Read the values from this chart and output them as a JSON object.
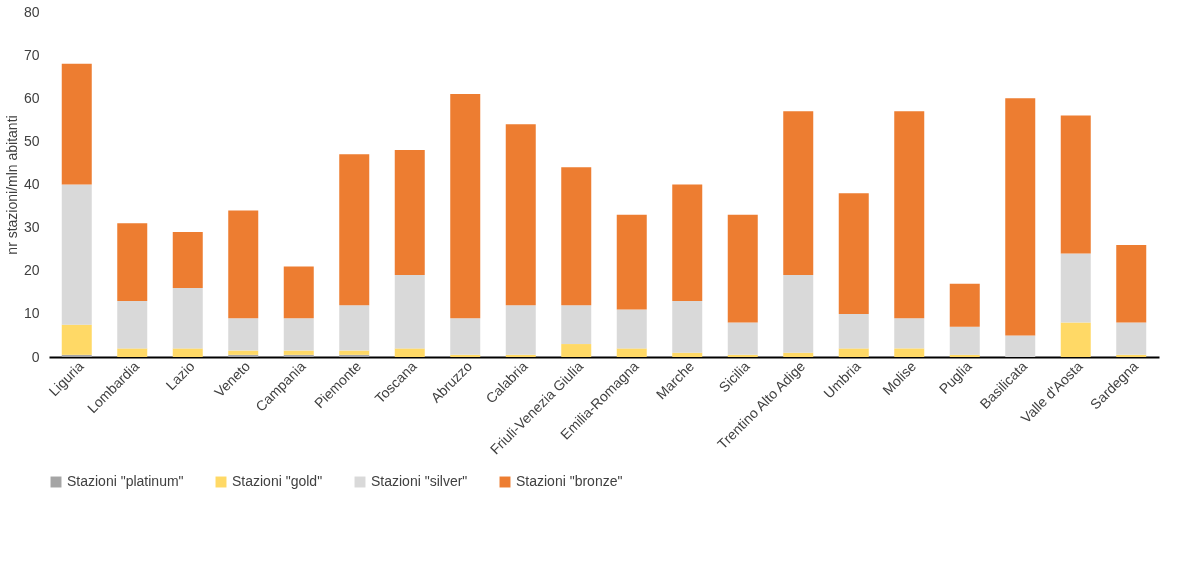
{
  "chart_data": {
    "type": "bar",
    "stacked": true,
    "ylabel": "nr stazioni/mln abitanti",
    "categories": [
      "Liguria",
      "Lombardia",
      "Lazio",
      "Veneto",
      "Campania",
      "Piemonte",
      "Toscana",
      "Abruzzo",
      "Calabria",
      "Friuli-Venezia Giulia",
      "Emilia-Romagna",
      "Marche",
      "Sicilia",
      "Trentino Alto Adige",
      "Umbria",
      "Molise",
      "Puglia",
      "Basilicata",
      "Valle d'Aosta",
      "Sardegna"
    ],
    "series": [
      {
        "name": "Stazioni \"platinum\"",
        "color": "#a5a5a5",
        "values": [
          0.5,
          0,
          0,
          0.5,
          0.5,
          0.5,
          0,
          0,
          0,
          0,
          0,
          0,
          0,
          0,
          0,
          0,
          0,
          0,
          0,
          0
        ]
      },
      {
        "name": "Stazioni \"gold\"",
        "color": "#ffd966",
        "values": [
          7,
          2,
          2,
          1,
          1,
          1,
          2,
          0.5,
          0.5,
          3,
          2,
          1,
          0.5,
          1,
          2,
          2,
          0.5,
          0,
          8,
          0.5
        ]
      },
      {
        "name": "Stazioni \"silver\"",
        "color": "#d9d9d9",
        "values": [
          32.5,
          11,
          14,
          7.5,
          7.5,
          10.5,
          17,
          8.5,
          11.5,
          9,
          9,
          12,
          7.5,
          18,
          8,
          7,
          6.5,
          5,
          16,
          7.5
        ]
      },
      {
        "name": "Stazioni \"bronze\"",
        "color": "#ed7d31",
        "values": [
          28,
          18,
          13,
          25,
          12,
          35,
          29,
          52,
          42,
          32,
          22,
          27,
          25,
          38,
          28,
          48,
          10,
          55,
          32,
          18
        ]
      }
    ],
    "ylim": [
      0,
      80
    ],
    "yticks": [
      0,
      10,
      20,
      30,
      40,
      50,
      60,
      70,
      80
    ],
    "grid": false,
    "legend": "bottom"
  }
}
